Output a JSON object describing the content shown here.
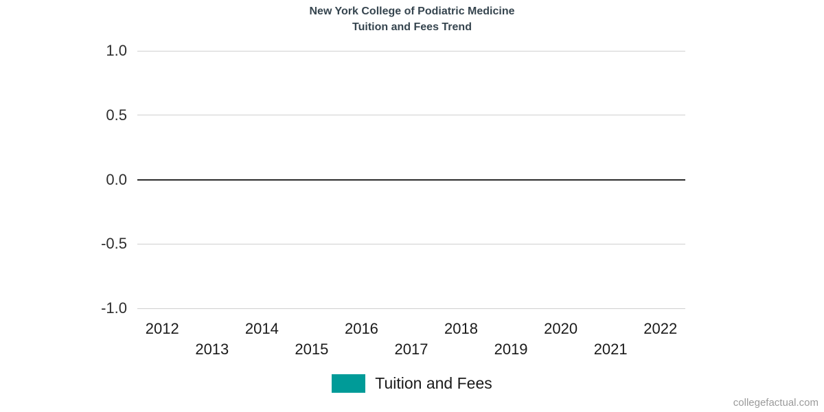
{
  "page": {
    "watermark": "collegefactual.com"
  },
  "chart_data": {
    "type": "line",
    "title": "New York College of Podiatric Medicine",
    "subtitle": "Tuition and Fees Trend",
    "xlabel": "",
    "ylabel": "",
    "categories": [
      "2012",
      "2013",
      "2014",
      "2015",
      "2016",
      "2017",
      "2018",
      "2019",
      "2020",
      "2021",
      "2022"
    ],
    "yticks": [
      "1.0",
      "0.5",
      "0.0",
      "-0.5",
      "-1.0"
    ],
    "ylim": [
      -1.0,
      1.0
    ],
    "grid": true,
    "zero_line": true,
    "legend_position": "bottom",
    "series": [
      {
        "name": "Tuition and Fees",
        "color": "#009b98",
        "values": []
      }
    ]
  },
  "colors": {
    "title_text": "#36454f",
    "tick_text": "#2d2d2d",
    "gridline": "#cfcfcf",
    "zero_line": "#2b2b2b",
    "accent_teal": "#009b98",
    "watermark_text": "#9a9a9a"
  }
}
